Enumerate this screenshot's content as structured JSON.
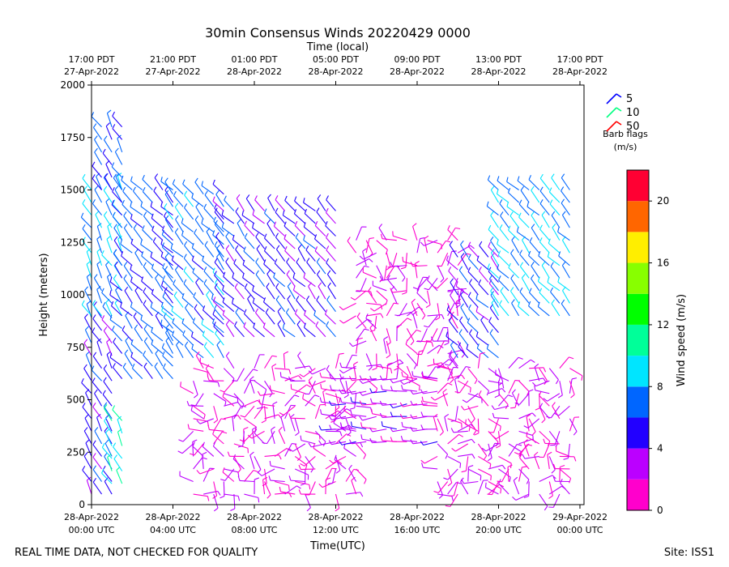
{
  "chart_data": {
    "type": "wind_barb_time_height",
    "title": "30min Consensus Winds 20220429 0000",
    "xlabel": "Time(UTC)",
    "top_xlabel": "Time (local)",
    "ylabel": "Height (meters)",
    "ylim": [
      0,
      2000
    ],
    "yticks": [
      0,
      250,
      500,
      750,
      1000,
      1250,
      1500,
      1750,
      2000
    ],
    "x_range_hours": [
      0,
      24.2
    ],
    "bottom_ticks": [
      {
        "hour": 0,
        "line1": "28-Apr-2022",
        "line2": "00:00 UTC"
      },
      {
        "hour": 4,
        "line1": "28-Apr-2022",
        "line2": "04:00 UTC"
      },
      {
        "hour": 8,
        "line1": "28-Apr-2022",
        "line2": "08:00 UTC"
      },
      {
        "hour": 12,
        "line1": "28-Apr-2022",
        "line2": "12:00 UTC"
      },
      {
        "hour": 16,
        "line1": "28-Apr-2022",
        "line2": "16:00 UTC"
      },
      {
        "hour": 20,
        "line1": "28-Apr-2022",
        "line2": "20:00 UTC"
      },
      {
        "hour": 24,
        "line1": "29-Apr-2022",
        "line2": "00:00 UTC"
      }
    ],
    "top_ticks": [
      {
        "hour": 0,
        "line1": "17:00 PDT",
        "line2": "27-Apr-2022"
      },
      {
        "hour": 4,
        "line1": "21:00 PDT",
        "line2": "27-Apr-2022"
      },
      {
        "hour": 8,
        "line1": "01:00 PDT",
        "line2": "28-Apr-2022"
      },
      {
        "hour": 12,
        "line1": "05:00 PDT",
        "line2": "28-Apr-2022"
      },
      {
        "hour": 16,
        "line1": "09:00 PDT",
        "line2": "28-Apr-2022"
      },
      {
        "hour": 20,
        "line1": "13:00 PDT",
        "line2": "28-Apr-2022"
      },
      {
        "hour": 24,
        "line1": "17:00 PDT",
        "line2": "28-Apr-2022"
      }
    ],
    "barb_legend": {
      "title": "Barb flags",
      "units": "(m/s)",
      "entries": [
        {
          "label": "5",
          "color": "#0000ff"
        },
        {
          "label": "10",
          "color": "#00ff80"
        },
        {
          "label": "50",
          "color": "#ff0000"
        }
      ]
    },
    "colorbar": {
      "label": "Wind speed (m/s)",
      "range": [
        0,
        22
      ],
      "ticks": [
        0,
        4,
        8,
        12,
        16,
        20
      ],
      "bins": [
        {
          "from": 0,
          "to": 2,
          "color": "#ff00cc"
        },
        {
          "from": 2,
          "to": 4,
          "color": "#bb00ff"
        },
        {
          "from": 4,
          "to": 6,
          "color": "#2200ff"
        },
        {
          "from": 6,
          "to": 8,
          "color": "#0066ff"
        },
        {
          "from": 8,
          "to": 10,
          "color": "#00e5ff"
        },
        {
          "from": 10,
          "to": 12,
          "color": "#00ff99"
        },
        {
          "from": 12,
          "to": 14,
          "color": "#00ff00"
        },
        {
          "from": 14,
          "to": 16,
          "color": "#88ff00"
        },
        {
          "from": 16,
          "to": 18,
          "color": "#ffee00"
        },
        {
          "from": 18,
          "to": 20,
          "color": "#ff6600"
        },
        {
          "from": 20,
          "to": 22,
          "color": "#ff0033"
        }
      ]
    },
    "wind_series": [
      {
        "time_range": [
          0,
          1.0
        ],
        "height_range": [
          50,
          900
        ],
        "speed": 5,
        "direction": "from N/NW"
      },
      {
        "time_range": [
          0,
          1.5
        ],
        "height_range": [
          900,
          1500
        ],
        "speed": 8,
        "direction": "from N/NW"
      },
      {
        "time_range": [
          0.5,
          1.5
        ],
        "height_range": [
          1500,
          1800
        ],
        "speed": 6,
        "direction": "from N/NW"
      },
      {
        "time_range": [
          1.0,
          1.8
        ],
        "height_range": [
          100,
          400
        ],
        "speed": 10,
        "direction": "from N/NW"
      },
      {
        "time_range": [
          1.5,
          4.0
        ],
        "height_range": [
          600,
          1500
        ],
        "speed": 6,
        "direction": "from NW"
      },
      {
        "time_range": [
          4.0,
          6.5
        ],
        "height_range": [
          700,
          1500
        ],
        "speed": 7,
        "direction": "from NW"
      },
      {
        "time_range": [
          6.5,
          12.0
        ],
        "height_range": [
          800,
          1400
        ],
        "speed": 5,
        "direction": "from NW"
      },
      {
        "time_range": [
          5.0,
          13.0
        ],
        "height_range": [
          50,
          700
        ],
        "speed": 2,
        "direction": "variable"
      },
      {
        "time_range": [
          12.0,
          17.0
        ],
        "height_range": [
          300,
          600
        ],
        "speed": 3,
        "direction": "from W"
      },
      {
        "time_range": [
          13.0,
          18.0
        ],
        "height_range": [
          600,
          1300
        ],
        "speed": 2,
        "direction": "variable"
      },
      {
        "time_range": [
          18.0,
          20.0
        ],
        "height_range": [
          700,
          1200
        ],
        "speed": 5,
        "direction": "from NW"
      },
      {
        "time_range": [
          20.0,
          23.5
        ],
        "height_range": [
          900,
          1500
        ],
        "speed": 8,
        "direction": "from NW"
      },
      {
        "time_range": [
          17.0,
          23.5
        ],
        "height_range": [
          50,
          700
        ],
        "speed": 2,
        "direction": "variable"
      }
    ]
  },
  "footer": {
    "left_note": "REAL TIME DATA, NOT CHECKED FOR QUALITY",
    "site": "Site: ISS1"
  }
}
